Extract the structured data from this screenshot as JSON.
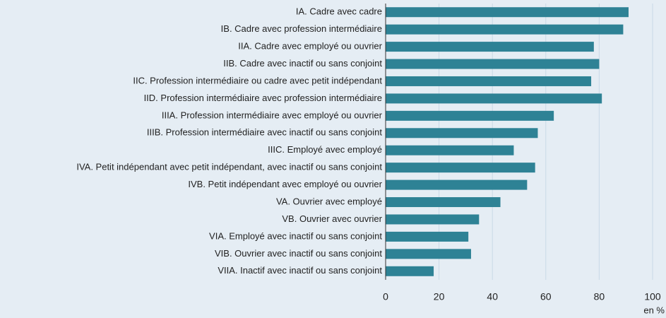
{
  "chart_data": {
    "type": "bar",
    "orientation": "horizontal",
    "categories": [
      "IA. Cadre avec cadre",
      "IB. Cadre avec profession intermédiaire",
      "IIA. Cadre avec employé ou ouvrier",
      "IIB. Cadre avec inactif ou sans conjoint",
      "IIC. Profession intermédiaire ou cadre avec petit indépendant",
      "IID. Profession intermédiaire avec profession intermédiaire",
      "IIIA. Profession intermédiaire avec employé ou ouvrier",
      "IIIB. Profession intermédiaire avec inactif ou sans conjoint",
      "IIIC. Employé avec employé",
      "IVA. Petit indépendant avec petit indépendant, avec inactif ou sans conjoint",
      "IVB. Petit indépendant avec employé ou ouvrier",
      "VA. Ouvrier avec employé",
      "VB. Ouvrier avec ouvrier",
      "VIA. Employé avec inactif ou sans conjoint",
      "VIB. Ouvrier avec inactif ou sans conjoint",
      "VIIA. Inactif avec inactif ou sans conjoint"
    ],
    "values": [
      91,
      89,
      78,
      80,
      77,
      81,
      63,
      57,
      48,
      56,
      53,
      43,
      35,
      31,
      32,
      18
    ],
    "color": "#2e8295",
    "x_label": "en %",
    "xlim": [
      0,
      100
    ],
    "xticks": [
      0,
      20,
      40,
      60,
      80,
      100
    ],
    "grid": true
  }
}
